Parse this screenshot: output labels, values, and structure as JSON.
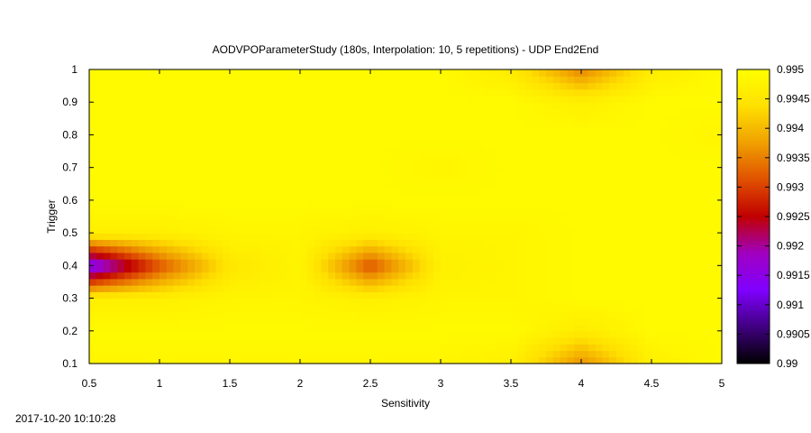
{
  "chart_data": {
    "type": "heatmap",
    "title": "AODVPOParameterStudy (180s, Interpolation: 10, 5 repetitions) - UDP End2End",
    "xlabel": "Sensitivity",
    "ylabel": "Trigger",
    "xlim": [
      0.5,
      5
    ],
    "ylim": [
      0.1,
      1
    ],
    "x_ticks": [
      "0.5",
      "1",
      "1.5",
      "2",
      "2.5",
      "3",
      "3.5",
      "4",
      "4.5",
      "5"
    ],
    "y_ticks": [
      "0.1",
      "0.2",
      "0.3",
      "0.4",
      "0.5",
      "0.6",
      "0.7",
      "0.8",
      "0.9",
      "1"
    ],
    "colorbar": {
      "range": [
        0.99,
        0.995
      ],
      "ticks": [
        "0.99",
        "0.9905",
        "0.991",
        "0.9915",
        "0.992",
        "0.9925",
        "0.993",
        "0.9935",
        "0.994",
        "0.9945",
        "0.995"
      ],
      "palette": [
        "#000000",
        "#400080",
        "#8000ff",
        "#a000c0",
        "#c00000",
        "#e05000",
        "#f0a000",
        "#ffe000",
        "#ffff00"
      ]
    },
    "x": [
      0.5,
      1,
      1.5,
      2,
      2.5,
      3,
      3.5,
      4,
      4.5,
      5
    ],
    "y": [
      0.1,
      0.2,
      0.3,
      0.4,
      0.5,
      0.6,
      0.7,
      0.8,
      0.9,
      1
    ],
    "z": [
      [
        0.9948,
        0.9948,
        0.9948,
        0.9948,
        0.9948,
        0.9948,
        0.9947,
        0.9936,
        0.9947,
        0.9949
      ],
      [
        0.9949,
        0.9949,
        0.9949,
        0.9949,
        0.9949,
        0.9949,
        0.9949,
        0.9946,
        0.9949,
        0.9949
      ],
      [
        0.9947,
        0.9947,
        0.9948,
        0.9948,
        0.9947,
        0.9948,
        0.9948,
        0.9949,
        0.9949,
        0.9949
      ],
      [
        0.9912,
        0.9931,
        0.9945,
        0.9948,
        0.9931,
        0.9947,
        0.9948,
        0.9949,
        0.9949,
        0.9949
      ],
      [
        0.9947,
        0.9947,
        0.9948,
        0.9948,
        0.9947,
        0.9948,
        0.9948,
        0.9949,
        0.9949,
        0.9949
      ],
      [
        0.9949,
        0.9949,
        0.9949,
        0.9949,
        0.9949,
        0.9949,
        0.9949,
        0.9949,
        0.9949,
        0.9949
      ],
      [
        0.9949,
        0.9949,
        0.9949,
        0.9949,
        0.9949,
        0.9948,
        0.9949,
        0.9949,
        0.9949,
        0.9949
      ],
      [
        0.9949,
        0.9949,
        0.9949,
        0.9949,
        0.9949,
        0.9949,
        0.9949,
        0.9949,
        0.9949,
        0.9948
      ],
      [
        0.9949,
        0.9949,
        0.9949,
        0.9949,
        0.9949,
        0.9949,
        0.9949,
        0.9947,
        0.9949,
        0.9949
      ],
      [
        0.9949,
        0.9949,
        0.9949,
        0.9949,
        0.9949,
        0.9949,
        0.9946,
        0.9935,
        0.9946,
        0.9949
      ]
    ]
  },
  "footer": {
    "timestamp": "2017-10-20 10:10:28"
  }
}
